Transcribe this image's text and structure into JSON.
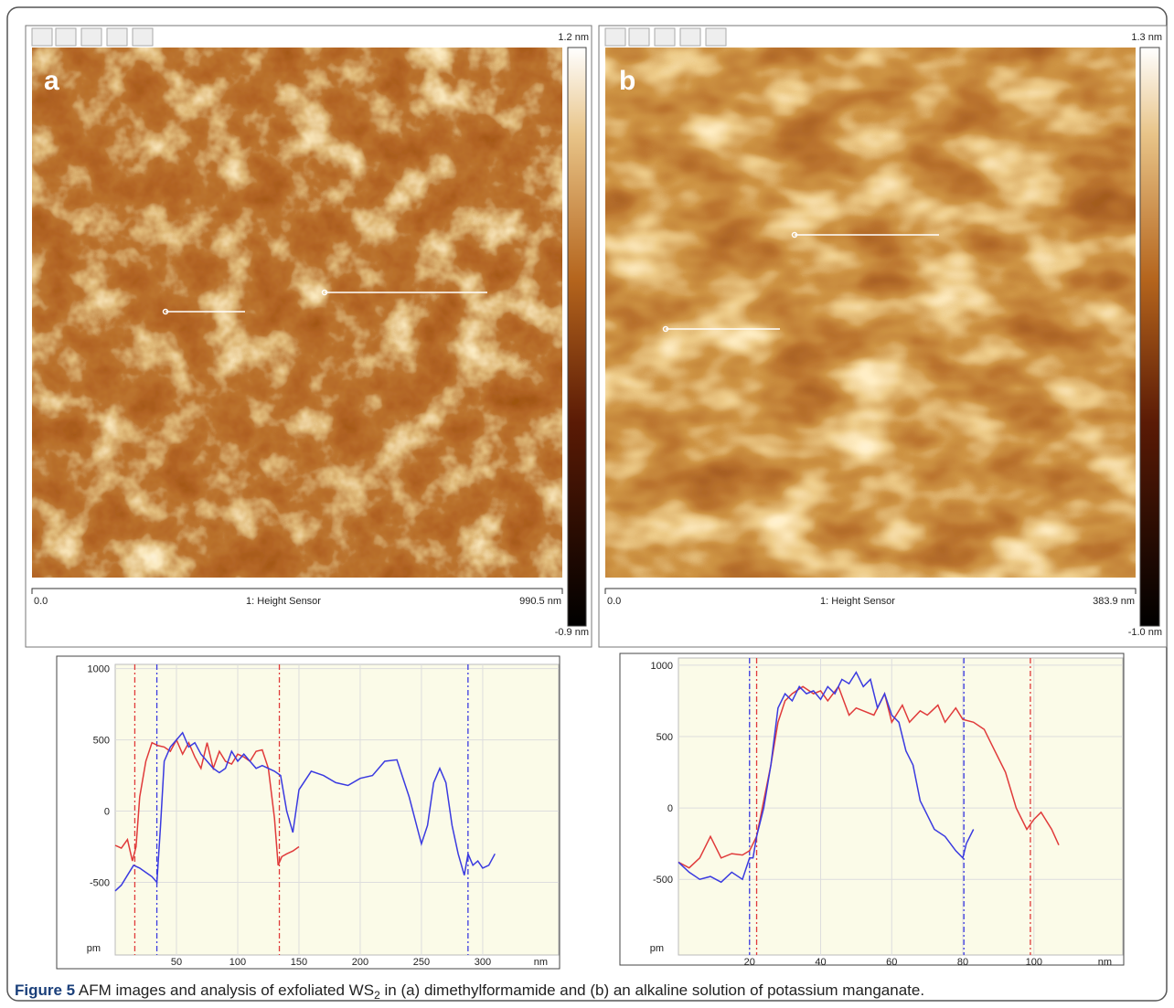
{
  "panels": [
    {
      "label": "a",
      "scale_max": "1.2 nm",
      "scale_min": "-0.9 nm",
      "axis_start": "0.0",
      "channel": "1: Height Sensor",
      "axis_end": "990.5 nm"
    },
    {
      "label": "b",
      "scale_max": "1.3 nm",
      "scale_min": "-1.0 nm",
      "axis_start": "0.0",
      "channel": "1: Height Sensor",
      "axis_end": "383.9 nm"
    }
  ],
  "chart_data": [
    {
      "type": "line",
      "y_label": "pm",
      "x_label": "nm",
      "xlim": [
        0,
        362
      ],
      "ylim": [
        -1010,
        1030
      ],
      "xticks": [
        50,
        100,
        150,
        200,
        250,
        300
      ],
      "yticks": [
        1000,
        500,
        0,
        -500
      ],
      "grid": true,
      "series": [
        {
          "color": "#e03a3a",
          "x": [
            0,
            5,
            10,
            14,
            17,
            20,
            25,
            30,
            35,
            40,
            45,
            50,
            55,
            60,
            65,
            70,
            75,
            80,
            85,
            90,
            95,
            100,
            105,
            110,
            115,
            120,
            125,
            130,
            133,
            136,
            140,
            145,
            150
          ],
          "values": [
            -240,
            -260,
            -200,
            -350,
            -250,
            100,
            350,
            480,
            460,
            450,
            420,
            500,
            400,
            480,
            380,
            300,
            480,
            300,
            420,
            350,
            330,
            400,
            380,
            350,
            420,
            430,
            300,
            -50,
            -380,
            -320,
            -300,
            -280,
            -250
          ]
        },
        {
          "color": "#3a3ae0",
          "x": [
            0,
            5,
            10,
            15,
            20,
            25,
            30,
            34,
            37,
            40,
            45,
            50,
            55,
            60,
            65,
            70,
            75,
            80,
            85,
            90,
            95,
            100,
            105,
            110,
            115,
            120,
            125,
            130,
            135,
            140,
            145,
            150,
            160,
            170,
            180,
            190,
            200,
            210,
            220,
            230,
            240,
            250,
            255,
            260,
            265,
            270,
            275,
            280,
            285,
            288,
            292,
            296,
            300,
            305,
            310
          ],
          "values": [
            -560,
            -520,
            -450,
            -380,
            -400,
            -430,
            -460,
            -500,
            -100,
            350,
            450,
            500,
            550,
            450,
            480,
            400,
            350,
            300,
            270,
            300,
            420,
            350,
            400,
            350,
            300,
            320,
            300,
            280,
            250,
            0,
            -150,
            150,
            280,
            250,
            200,
            180,
            230,
            250,
            350,
            360,
            100,
            -230,
            -100,
            200,
            300,
            200,
            -100,
            -300,
            -450,
            -300,
            -380,
            -350,
            -400,
            -380,
            -300
          ]
        }
      ],
      "cursors": [
        {
          "x": 16,
          "color": "#e03a3a"
        },
        {
          "x": 34,
          "color": "#3a3ae0"
        },
        {
          "x": 134,
          "color": "#e03a3a"
        },
        {
          "x": 288,
          "color": "#3a3ae0"
        }
      ]
    },
    {
      "type": "line",
      "y_label": "pm",
      "x_label": "nm",
      "xlim": [
        0,
        125
      ],
      "ylim": [
        -1030,
        1050
      ],
      "xticks": [
        20,
        40,
        60,
        80,
        100
      ],
      "yticks": [
        1000,
        500,
        0,
        -500
      ],
      "grid": true,
      "series": [
        {
          "color": "#e03a3a",
          "x": [
            0,
            3,
            6,
            9,
            12,
            15,
            18,
            20,
            22,
            24,
            26,
            28,
            30,
            32,
            35,
            38,
            40,
            42,
            45,
            48,
            50,
            55,
            58,
            60,
            63,
            65,
            68,
            70,
            73,
            75,
            78,
            80,
            83,
            86,
            89,
            92,
            95,
            98,
            100,
            102,
            105,
            107
          ],
          "values": [
            -380,
            -420,
            -350,
            -200,
            -350,
            -320,
            -330,
            -300,
            -200,
            50,
            300,
            600,
            750,
            800,
            850,
            800,
            820,
            750,
            850,
            650,
            700,
            650,
            800,
            600,
            720,
            600,
            680,
            650,
            720,
            600,
            700,
            620,
            600,
            550,
            400,
            250,
            0,
            -150,
            -80,
            -30,
            -150,
            -260
          ]
        },
        {
          "color": "#3a3ae0",
          "x": [
            0,
            3,
            6,
            9,
            12,
            15,
            18,
            20,
            21,
            22,
            24,
            26,
            28,
            30,
            32,
            34,
            36,
            38,
            40,
            42,
            44,
            46,
            48,
            50,
            52,
            54,
            56,
            58,
            60,
            62,
            64,
            66,
            68,
            70,
            72,
            75,
            78,
            80,
            81,
            83
          ],
          "values": [
            -380,
            -450,
            -500,
            -480,
            -520,
            -450,
            -500,
            -350,
            -350,
            -200,
            0,
            300,
            700,
            800,
            750,
            850,
            800,
            820,
            760,
            850,
            800,
            900,
            870,
            950,
            850,
            900,
            700,
            800,
            650,
            600,
            400,
            300,
            50,
            -50,
            -150,
            -200,
            -300,
            -350,
            -250,
            -150
          ]
        }
      ],
      "cursors": [
        {
          "x": 20,
          "color": "#3a3ae0"
        },
        {
          "x": 22,
          "color": "#e03a3a"
        },
        {
          "x": 80.3,
          "color": "#3a3ae0"
        },
        {
          "x": 99,
          "color": "#e03a3a"
        }
      ]
    }
  ],
  "caption": {
    "label": "Figure 5",
    "text_before": "AFM images and analysis of exfoliated WS",
    "subscript": "2",
    "text_after": " in (a) dimethylformamide and (b) an alkaline solution of potassium manganate."
  }
}
